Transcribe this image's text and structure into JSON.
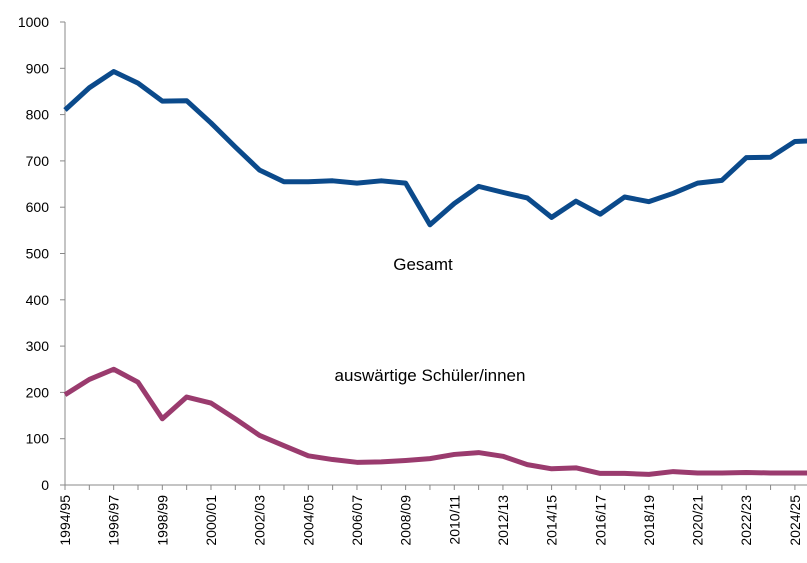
{
  "chart_data": {
    "type": "line",
    "categories": [
      "1994/95",
      null,
      "1996/97",
      null,
      "1998/99",
      null,
      "2000/01",
      null,
      "2002/03",
      null,
      "2004/05",
      null,
      "2006/07",
      null,
      "2008/09",
      null,
      "2010/11",
      null,
      "2012/13",
      null,
      "2014/15",
      null,
      "2016/17",
      null,
      "2018/19",
      null,
      "2020/21",
      null,
      "2022/23",
      null,
      "2024/25",
      null
    ],
    "series": [
      {
        "name": "Gesamt",
        "color": "#0b4a8b",
        "values": [
          810,
          858,
          893,
          868,
          829,
          830,
          782,
          730,
          680,
          655,
          655,
          657,
          652,
          657,
          652,
          562,
          608,
          645,
          632,
          620,
          578,
          613,
          585,
          622,
          612,
          630,
          652,
          658,
          707,
          708,
          742,
          744
        ]
      },
      {
        "name": "auswärtige Schüler/innen",
        "color": "#9a3b6e",
        "values": [
          195,
          228,
          250,
          222,
          143,
          190,
          177,
          143,
          107,
          85,
          63,
          55,
          49,
          50,
          53,
          57,
          66,
          70,
          62,
          44,
          35,
          37,
          25,
          25,
          23,
          29,
          26,
          26,
          27,
          26,
          26,
          26
        ]
      }
    ],
    "ylim": [
      0,
      1000
    ],
    "yticks": [
      0,
      100,
      200,
      300,
      400,
      500,
      600,
      700,
      800,
      900,
      1000
    ],
    "grid": false
  }
}
